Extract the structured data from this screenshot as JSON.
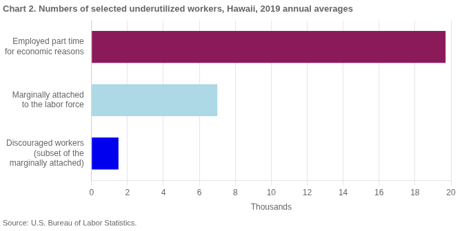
{
  "chart_data": {
    "type": "bar",
    "orientation": "horizontal",
    "title": "Chart 2. Numbers of selected underutilized workers, Hawaii, 2019 annual averages",
    "source": "Source: U.S. Bureau of Labor Statistics.",
    "categories": [
      "Discouraged workers\n(subset of the\nmarginally attached)",
      "Marginally attached\nto the labor force",
      "Employed part time\nfor economic reasons"
    ],
    "values": [
      1.5,
      7.0,
      19.7
    ],
    "colors": [
      "#0000EE",
      "#ADD8E6",
      "#8B1A5A"
    ],
    "xlabel": "Thousands",
    "xlim": [
      0,
      20
    ],
    "xticks": [
      0,
      2,
      4,
      6,
      8,
      10,
      12,
      14,
      16,
      18,
      20
    ],
    "grid": true
  }
}
